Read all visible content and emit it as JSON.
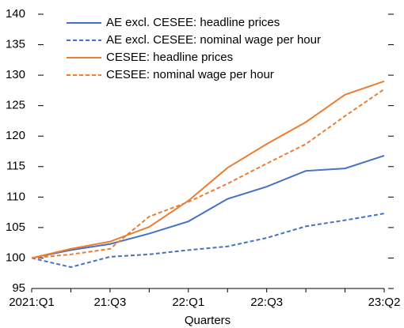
{
  "chart_data": {
    "type": "line",
    "x_label": "Quarters",
    "categories": [
      "2021:Q1",
      null,
      "21:Q3",
      null,
      "22:Q1",
      null,
      "22:Q3",
      null,
      null,
      "23:Q2"
    ],
    "series": [
      {
        "name": "AE excl. CESEE: headline prices",
        "color": "#4472c4",
        "dashed": false,
        "values": [
          100,
          101.3,
          102.3,
          104,
          106,
          109.7,
          111.7,
          114.3,
          114.7,
          116.8
        ]
      },
      {
        "name": "AE excl. CESEE: nominal wage per hour",
        "color": "#4472c4",
        "dashed": true,
        "values": [
          100,
          98.5,
          100.2,
          100.6,
          101.3,
          101.9,
          103.3,
          105.2,
          106.2,
          107.3
        ]
      },
      {
        "name": "CESEE: headline prices",
        "color": "#ed7d31",
        "dashed": false,
        "values": [
          100,
          101.5,
          102.7,
          105.1,
          109.4,
          114.8,
          118.7,
          122.3,
          126.8,
          129
        ]
      },
      {
        "name": "CESEE: nominal wage per hour",
        "color": "#ed7d31",
        "dashed": true,
        "values": [
          100,
          100.6,
          101.5,
          106.8,
          109.2,
          112.2,
          115.5,
          118.7,
          123.3,
          127.7
        ]
      }
    ],
    "ylim": [
      95,
      140
    ],
    "yticks": [
      95,
      100,
      105,
      110,
      115,
      120,
      125,
      130,
      135,
      140
    ],
    "legend": "top-left",
    "grid": false
  }
}
